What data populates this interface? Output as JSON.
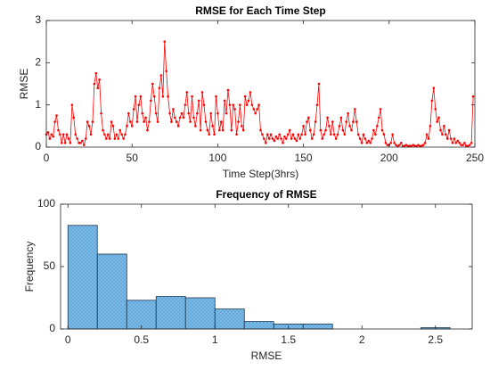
{
  "chart_data": [
    {
      "type": "line",
      "title": "RMSE for Each Time Step",
      "xlabel": "Time Step(3hrs)",
      "ylabel": "RMSE",
      "color": "#ff0000",
      "xlim": [
        0,
        250
      ],
      "xticks": [
        0,
        50,
        100,
        150,
        200,
        250
      ],
      "ylim": [
        0,
        3
      ],
      "yticks": [
        0,
        1,
        2,
        3
      ],
      "grid": false,
      "x": [
        0,
        1,
        2,
        3,
        4,
        5,
        6,
        7,
        8,
        9,
        10,
        11,
        12,
        13,
        14,
        15,
        16,
        17,
        18,
        19,
        20,
        21,
        22,
        23,
        24,
        25,
        26,
        27,
        28,
        29,
        30,
        31,
        32,
        33,
        34,
        35,
        36,
        37,
        38,
        39,
        40,
        41,
        42,
        43,
        44,
        45,
        46,
        47,
        48,
        49,
        50,
        51,
        52,
        53,
        54,
        55,
        56,
        57,
        58,
        59,
        60,
        61,
        62,
        63,
        64,
        65,
        66,
        67,
        68,
        69,
        70,
        71,
        72,
        73,
        74,
        75,
        76,
        77,
        78,
        79,
        80,
        81,
        82,
        83,
        84,
        85,
        86,
        87,
        88,
        89,
        90,
        91,
        92,
        93,
        94,
        95,
        96,
        97,
        98,
        99,
        100,
        101,
        102,
        103,
        104,
        105,
        106,
        107,
        108,
        109,
        110,
        111,
        112,
        113,
        114,
        115,
        116,
        117,
        118,
        119,
        120,
        121,
        122,
        123,
        124,
        125,
        126,
        127,
        128,
        129,
        130,
        131,
        132,
        133,
        134,
        135,
        136,
        137,
        138,
        139,
        140,
        141,
        142,
        143,
        144,
        145,
        146,
        147,
        148,
        149,
        150,
        151,
        152,
        153,
        154,
        155,
        156,
        157,
        158,
        159,
        160,
        161,
        162,
        163,
        164,
        165,
        166,
        167,
        168,
        169,
        170,
        171,
        172,
        173,
        174,
        175,
        176,
        177,
        178,
        179,
        180,
        181,
        182,
        183,
        184,
        185,
        186,
        187,
        188,
        189,
        190,
        191,
        192,
        193,
        194,
        195,
        196,
        197,
        198,
        199,
        200,
        201,
        202,
        203,
        204,
        205,
        206,
        207,
        208,
        209,
        210,
        211,
        212,
        213,
        214,
        215,
        216,
        217,
        218,
        219,
        220,
        221,
        222,
        223,
        224,
        225,
        226,
        227,
        228,
        229,
        230,
        231,
        232,
        233,
        234,
        235,
        236,
        237,
        238,
        239,
        240,
        241,
        242,
        243,
        244,
        245,
        246,
        247,
        248,
        249
      ],
      "values": [
        0.3,
        0.35,
        0.2,
        0.3,
        0.25,
        0.6,
        0.75,
        0.4,
        0.3,
        0.1,
        0.3,
        0.1,
        0.3,
        0.2,
        0.1,
        1.0,
        0.7,
        0.3,
        0.2,
        0.1,
        0.1,
        0.15,
        0.05,
        0.2,
        0.6,
        0.5,
        0.3,
        0.6,
        1.5,
        1.75,
        1.4,
        1.6,
        0.8,
        0.4,
        0.3,
        0.2,
        0.3,
        0.2,
        0.6,
        0.5,
        0.2,
        0.3,
        0.2,
        0.4,
        0.3,
        0.2,
        0.3,
        0.5,
        0.8,
        0.6,
        0.5,
        0.9,
        1.2,
        0.6,
        1.0,
        1.2,
        0.8,
        0.6,
        0.7,
        0.4,
        0.6,
        1.1,
        1.5,
        1.2,
        0.8,
        0.6,
        1.4,
        1.7,
        1.2,
        2.5,
        1.8,
        1.2,
        0.8,
        0.6,
        0.9,
        0.7,
        0.6,
        0.5,
        0.7,
        0.8,
        0.7,
        1.0,
        1.3,
        0.8,
        0.6,
        1.2,
        0.7,
        0.5,
        0.8,
        1.1,
        0.4,
        1.3,
        1.0,
        0.6,
        0.4,
        0.3,
        0.8,
        0.5,
        0.3,
        1.2,
        0.8,
        0.4,
        0.6,
        0.4,
        1.1,
        0.8,
        1.35,
        1.0,
        0.4,
        1.0,
        0.9,
        0.3,
        0.6,
        1.0,
        0.5,
        0.4,
        1.2,
        1.0,
        1.1,
        1.3,
        1.0,
        0.9,
        0.8,
        0.9,
        1.0,
        0.4,
        0.3,
        0.2,
        0.1,
        0.3,
        0.2,
        0.3,
        0.2,
        0.15,
        0.25,
        0.2,
        0.3,
        0.2,
        0.1,
        0.25,
        0.2,
        0.3,
        0.4,
        0.2,
        0.3,
        0.2,
        0.15,
        0.3,
        0.2,
        0.3,
        0.5,
        0.3,
        0.6,
        0.7,
        0.4,
        0.2,
        0.3,
        0.6,
        1.0,
        1.5,
        0.4,
        0.2,
        0.3,
        0.4,
        0.7,
        0.5,
        0.3,
        0.6,
        0.3,
        0.2,
        0.3,
        0.5,
        0.7,
        0.4,
        0.3,
        0.6,
        0.8,
        0.5,
        0.4,
        0.6,
        0.9,
        0.6,
        0.3,
        0.2,
        0.1,
        0.3,
        0.2,
        0.1,
        0.15,
        0.1,
        0.2,
        0.4,
        0.3,
        0.5,
        0.7,
        0.9,
        0.4,
        0.3,
        0.1,
        0.05,
        0.05,
        0.1,
        0.3,
        0.1,
        0.05,
        0.02,
        0.05,
        0.1,
        0.02,
        0.03,
        0.05,
        0.02,
        0.03,
        0.02,
        0.05,
        0.03,
        0.02,
        0.05,
        0.02,
        0.03,
        0.05,
        0.1,
        0.3,
        0.2,
        0.5,
        1.1,
        1.4,
        0.9,
        0.6,
        0.7,
        0.4,
        0.3,
        0.5,
        0.3,
        0.2,
        0.4,
        0.2,
        0.1,
        0.2,
        0.1,
        0.15,
        0.1,
        0.05,
        0.05,
        0.1,
        0.03,
        0.02,
        0.05,
        0.1,
        1.2
      ]
    },
    {
      "type": "histogram",
      "title": "Frequency of RMSE",
      "xlabel": "RMSE",
      "ylabel": "Frequency",
      "color": "#5fa8dc",
      "xlim": [
        -0.05,
        2.75
      ],
      "xticks": [
        0,
        0.5,
        1,
        1.5,
        2,
        2.5
      ],
      "ylim": [
        0,
        100
      ],
      "yticks": [
        0,
        50,
        100
      ],
      "grid": false,
      "bins": [
        0,
        0.2,
        0.4,
        0.6,
        0.8,
        1.0,
        1.2,
        1.4,
        1.6,
        1.8,
        2.0,
        2.2,
        2.4,
        2.6
      ],
      "values": [
        83,
        60,
        23,
        26,
        25,
        16,
        6,
        4,
        4,
        0,
        0,
        0,
        1
      ]
    }
  ]
}
